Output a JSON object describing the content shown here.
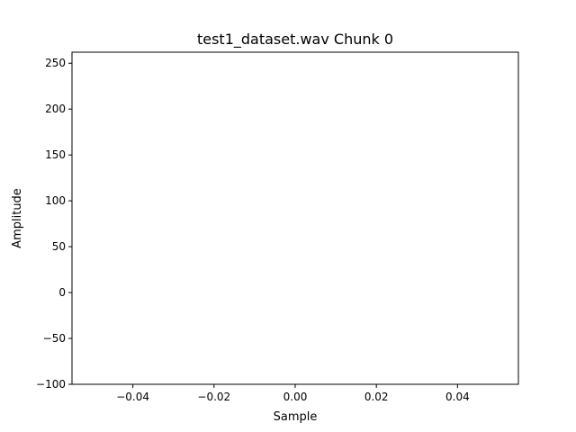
{
  "chart_data": {
    "type": "line",
    "title": "test1_dataset.wav Chunk 0",
    "xlabel": "Sample",
    "ylabel": "Amplitude",
    "xlim": [
      -0.055,
      0.055
    ],
    "ylim": [
      -100,
      262
    ],
    "x_ticks": [
      -0.04,
      -0.02,
      0.0,
      0.02,
      0.04
    ],
    "x_tick_labels": [
      "−0.04",
      "−0.02",
      "0.00",
      "0.02",
      "0.04"
    ],
    "y_ticks": [
      -100,
      -50,
      0,
      50,
      100,
      150,
      200,
      250
    ],
    "y_tick_labels": [
      "−100",
      "−50",
      "0",
      "50",
      "100",
      "150",
      "200",
      "250"
    ],
    "grid": false,
    "series": [
      {
        "x": [],
        "y": []
      }
    ]
  }
}
